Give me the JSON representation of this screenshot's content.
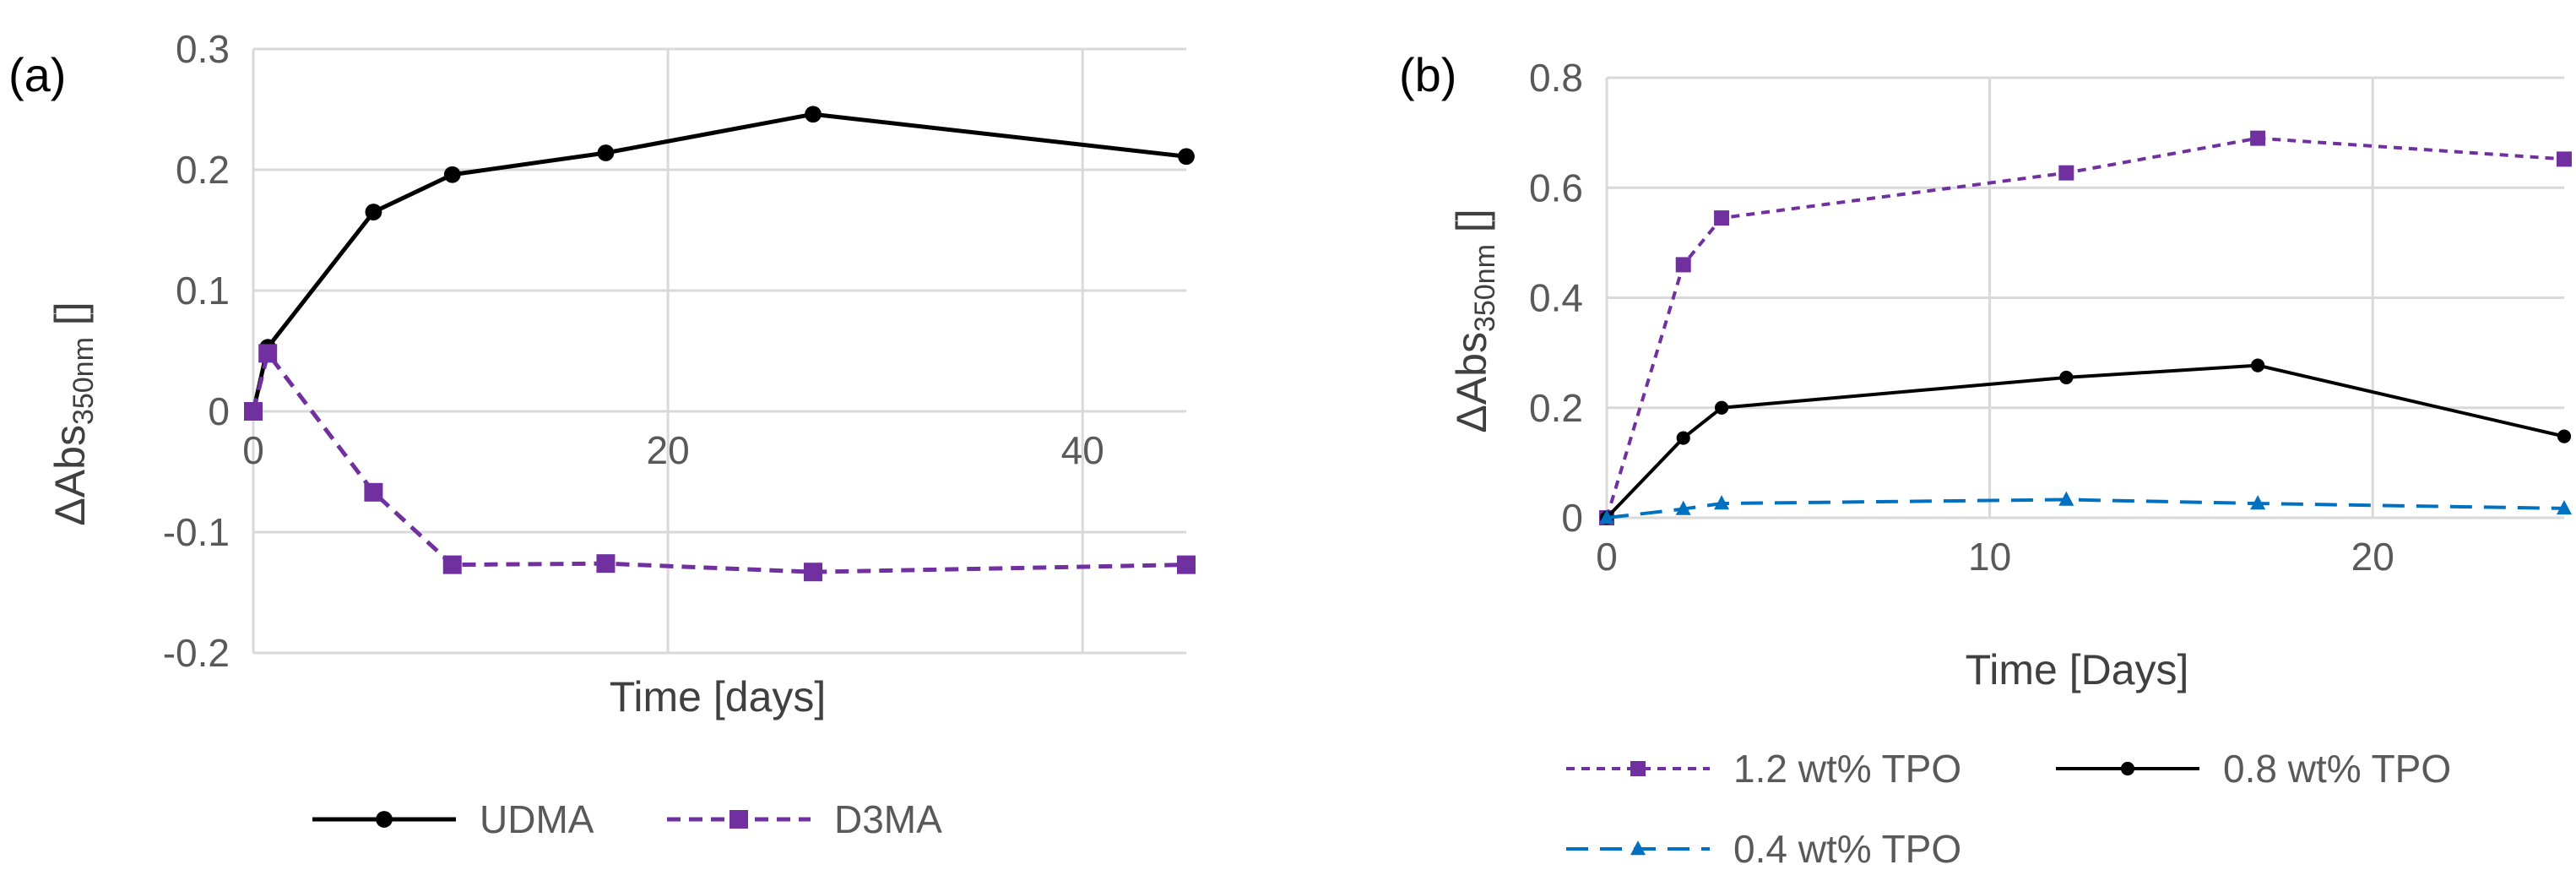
{
  "chart_data": [
    {
      "panel": "(a)",
      "type": "line",
      "xlabel": "Time [days]",
      "ylabel": {
        "main": "ΔAbs",
        "sub": "350nm",
        "unit": " []"
      },
      "xlim": [
        0,
        45
      ],
      "ylim": [
        -0.2,
        0.3
      ],
      "xticks": [
        0,
        20,
        40
      ],
      "yticks": [
        -0.2,
        -0.1,
        0,
        0.1,
        0.2,
        0.3
      ],
      "ytick_labels": [
        "-0.2",
        "-0.1",
        "0",
        "0.1",
        "0.2",
        "0.3"
      ],
      "xtick_labels": [
        "0",
        "20",
        "40"
      ],
      "grid": true,
      "legend_position": "bottom",
      "series": [
        {
          "name": "UDMA",
          "color": "#000000",
          "dash": "solid",
          "marker": "circle",
          "x": [
            0,
            0.7,
            5.8,
            9.6,
            17,
            27,
            45
          ],
          "y": [
            0,
            0.053,
            0.165,
            0.196,
            0.214,
            0.246,
            0.211
          ]
        },
        {
          "name": "D3MA",
          "color": "#7030A0",
          "dash": "dashed",
          "marker": "square",
          "x": [
            0,
            0.7,
            5.8,
            9.6,
            17,
            27,
            45
          ],
          "y": [
            0,
            0.048,
            -0.067,
            -0.127,
            -0.126,
            -0.133,
            -0.127
          ]
        }
      ]
    },
    {
      "panel": "(b)",
      "type": "line",
      "xlabel": "Time [Days]",
      "ylabel": {
        "main": "ΔAbs",
        "sub": "350nm",
        "unit": " []"
      },
      "xlim": [
        0,
        25
      ],
      "ylim": [
        0,
        0.8
      ],
      "xticks": [
        0,
        10,
        20
      ],
      "yticks": [
        0,
        0.2,
        0.4,
        0.6,
        0.8
      ],
      "ytick_labels": [
        "0",
        "0.2",
        "0.4",
        "0.6",
        "0.8"
      ],
      "xtick_labels": [
        "0",
        "10",
        "20"
      ],
      "grid": true,
      "legend_position": "bottom",
      "series": [
        {
          "name": "1.2 wt% TPO",
          "color": "#7030A0",
          "dash": "short-dash",
          "marker": "square",
          "x": [
            0,
            2,
            3,
            12,
            17,
            25
          ],
          "y": [
            0,
            0.46,
            0.545,
            0.627,
            0.69,
            0.652
          ]
        },
        {
          "name": "0.8 wt% TPO",
          "color": "#000000",
          "dash": "solid",
          "marker": "circle",
          "x": [
            0,
            2,
            3,
            12,
            17,
            25
          ],
          "y": [
            0,
            0.145,
            0.2,
            0.255,
            0.277,
            0.148
          ]
        },
        {
          "name": "0.4 wt% TPO",
          "color": "#0070C0",
          "dash": "long-dash",
          "marker": "triangle",
          "x": [
            0,
            2,
            3,
            12,
            17,
            25
          ],
          "y": [
            0,
            0.016,
            0.026,
            0.033,
            0.026,
            0.017
          ]
        }
      ]
    }
  ]
}
